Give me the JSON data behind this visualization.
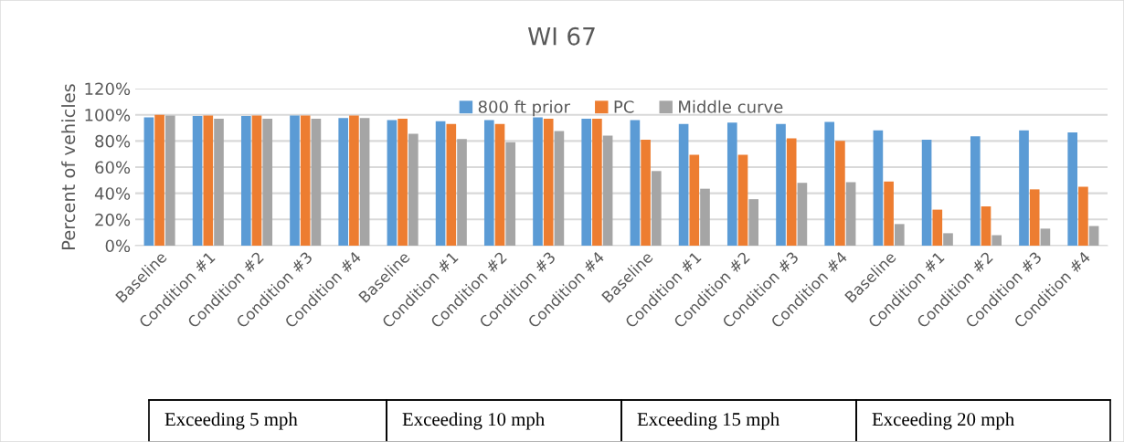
{
  "chart_data": {
    "type": "bar",
    "title": "WI 67",
    "ylabel": "Percent of vehicles",
    "categories": [
      "Baseline",
      "Condition #1",
      "Condition #2",
      "Condition #3",
      "Condition #4",
      "Baseline",
      "Condition #1",
      "Condition #2",
      "Condition #3",
      "Condition #4",
      "Baseline",
      "Condition #1",
      "Condition #2",
      "Condition #3",
      "Condition #4",
      "Baseline",
      "Condition #1",
      "Condition #2",
      "Condition #3",
      "Condition #4"
    ],
    "series": [
      {
        "name": "800 ft prior",
        "color": "#5b9bd5",
        "values": [
          98,
          99,
          99,
          99.5,
          97.5,
          96,
          95,
          96,
          98,
          97,
          96,
          93,
          94,
          93,
          94.5,
          88,
          81,
          83.5,
          88,
          86.5
        ]
      },
      {
        "name": "PC",
        "color": "#ed7d31",
        "values": [
          100,
          99.5,
          99.5,
          99.5,
          99.5,
          97,
          93,
          93,
          97,
          97,
          81,
          69.5,
          69.5,
          82,
          80,
          49,
          27.5,
          30,
          43,
          45
        ]
      },
      {
        "name": "Middle curve",
        "color": "#a5a5a5",
        "values": [
          99.5,
          97,
          97,
          97,
          97.5,
          85.5,
          81.5,
          79,
          87.5,
          84,
          57,
          43.5,
          35.5,
          48,
          48.5,
          16.5,
          9.5,
          8,
          13,
          15
        ]
      }
    ],
    "ylim": [
      0,
      120
    ],
    "yticks": [
      {
        "value": 0,
        "label": "0%"
      },
      {
        "value": 20,
        "label": "20%"
      },
      {
        "value": 40,
        "label": "40%"
      },
      {
        "value": 60,
        "label": "60%"
      },
      {
        "value": 80,
        "label": "80%"
      },
      {
        "value": 100,
        "label": "100%"
      },
      {
        "value": 120,
        "label": "120%"
      }
    ],
    "grid": "y",
    "legend": "top",
    "annotations": [
      "Exceeding 5 mph",
      "Exceeding 10 mph",
      "Exceeding 15 mph",
      "Exceeding 20 mph"
    ]
  }
}
